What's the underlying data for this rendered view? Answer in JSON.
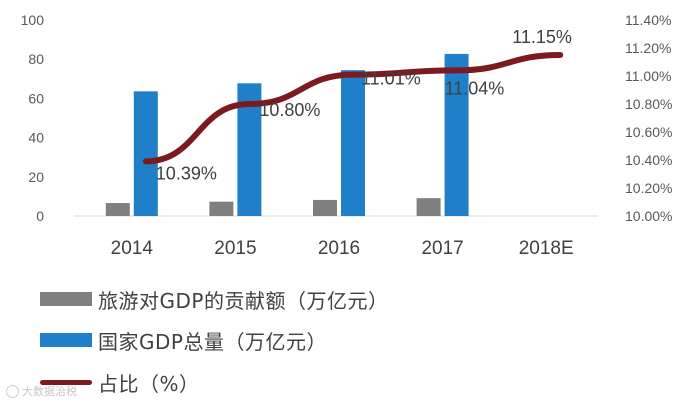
{
  "chart_data": {
    "type": "bar",
    "categories": [
      "2014",
      "2015",
      "2016",
      "2017",
      "2018E"
    ],
    "series": [
      {
        "name": "旅游对GDP的贡献额（万亿元）",
        "type": "bar",
        "axis": "left",
        "values": [
          6.6,
          7.3,
          8.2,
          9.1,
          null
        ],
        "color": "#7f7f7f"
      },
      {
        "name": "国家GDP总量（万亿元）",
        "type": "bar",
        "axis": "left",
        "values": [
          63.6,
          67.7,
          74.4,
          82.7,
          null
        ],
        "color": "#1f7fc8"
      },
      {
        "name": "占比（%）",
        "type": "line",
        "axis": "right",
        "values": [
          10.39,
          10.8,
          11.01,
          11.04,
          11.15
        ],
        "color": "#7b1a1f",
        "labels": [
          "10.39%",
          "10.80%",
          "11.01%",
          "11.04%",
          "11.15%"
        ]
      }
    ],
    "y_left": {
      "ylim": [
        0,
        100
      ],
      "ticks": [
        "0",
        "20",
        "40",
        "60",
        "80",
        "100"
      ]
    },
    "y_right": {
      "ylim": [
        10.0,
        11.4
      ],
      "ticks": [
        "10.00%",
        "10.20%",
        "10.40%",
        "10.60%",
        "10.80%",
        "11.00%",
        "11.20%",
        "11.40%"
      ]
    },
    "grid": false,
    "legend": "bottom-left"
  },
  "legend": [
    {
      "label": "旅游对GDP的贡献额（万亿元）",
      "kind": "bar",
      "color": "#7f7f7f"
    },
    {
      "label": "国家GDP总量（万亿元）",
      "kind": "bar",
      "color": "#1f7fc8"
    },
    {
      "label": "占比（%）",
      "kind": "line",
      "color": "#7b1a1f"
    }
  ],
  "watermark": {
    "text": "大数据治税"
  }
}
